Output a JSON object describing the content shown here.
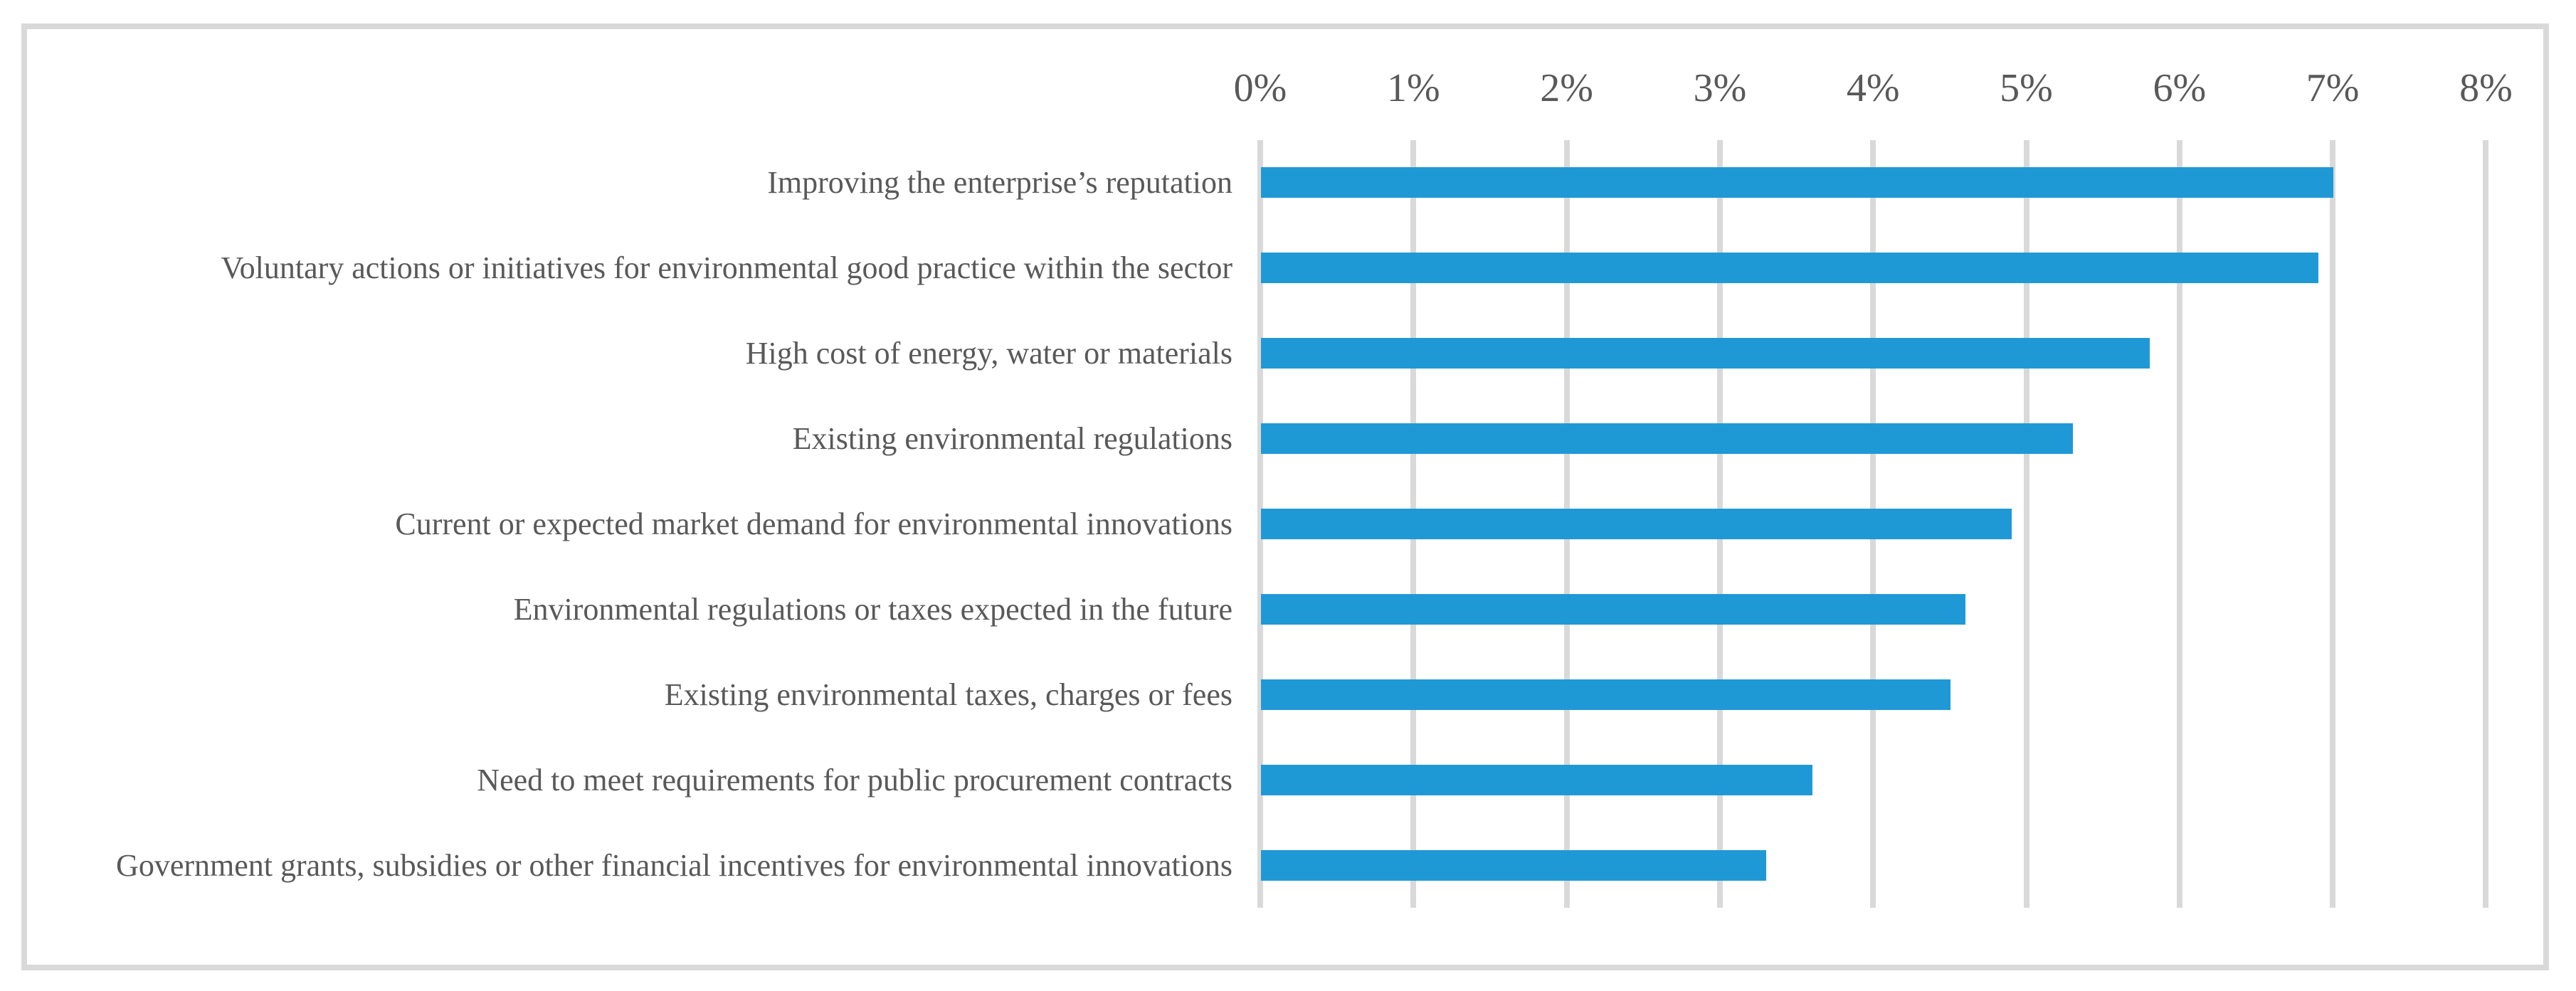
{
  "chart_data": {
    "type": "bar",
    "orientation": "horizontal",
    "title": "",
    "categories": [
      "Improving the enterprise’s reputation",
      "Voluntary actions or initiatives for environmental good practice within the sector",
      "High cost of energy, water or materials",
      "Existing environmental regulations",
      "Current or expected market demand for environmental innovations",
      "Environmental regulations or taxes expected in the future",
      "Existing environmental taxes, charges or fees",
      "Need to meet requirements for public procurement contracts",
      "Government grants, subsidies or other financial incentives for environmental innovations"
    ],
    "values": [
      7.0,
      6.9,
      5.8,
      5.3,
      4.9,
      4.6,
      4.5,
      3.6,
      3.3
    ],
    "unit": "%",
    "x_axis": {
      "position": "top",
      "min": 0,
      "max": 8,
      "tick_step": 1,
      "tick_labels": [
        "0%",
        "1%",
        "2%",
        "3%",
        "4%",
        "5%",
        "6%",
        "7%",
        "8%"
      ]
    },
    "legend": false,
    "grid": true,
    "colors": {
      "bar": "#1f99d6",
      "gridline": "#d9d9d9",
      "frame_border": "#d9d9d9",
      "text": "#595959",
      "background": "#ffffff"
    }
  }
}
